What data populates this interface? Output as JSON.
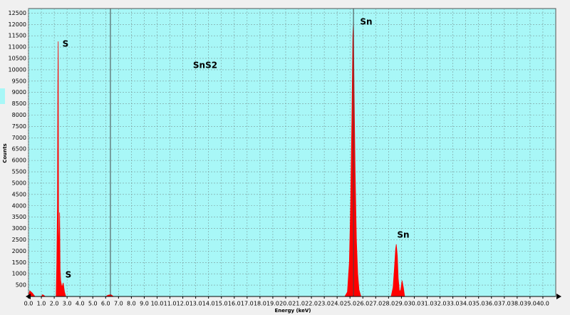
{
  "chart_data": {
    "type": "area",
    "y_label": "Counts",
    "x_label": "Energy (keV)",
    "annotations": [
      "S",
      "S",
      "SnS2",
      "Sn",
      "Sn"
    ],
    "color": "#ff0000",
    "background": "#a8f7f7",
    "grid": true,
    "cursor_lines": [
      6.37,
      25.27
    ],
    "xlim": [
      0,
      41
    ],
    "ylim": [
      0,
      12700
    ],
    "xticks": [
      {
        "value": 0,
        "label": "0.0"
      },
      {
        "value": 1,
        "label": "1.0"
      },
      {
        "value": 2,
        "label": "2.0"
      },
      {
        "value": 3,
        "label": "3.0"
      },
      {
        "value": 4,
        "label": "4.0"
      },
      {
        "value": 5,
        "label": "5.0"
      },
      {
        "value": 6,
        "label": "6.0"
      },
      {
        "value": 7,
        "label": "7.0"
      },
      {
        "value": 8,
        "label": "8.0"
      },
      {
        "value": 9,
        "label": "9.0"
      },
      {
        "value": 10,
        "label": "10.0"
      },
      {
        "value": 11,
        "label": "11.0"
      },
      {
        "value": 12,
        "label": "12.0"
      },
      {
        "value": 13,
        "label": "13.0"
      },
      {
        "value": 14,
        "label": "14.0"
      },
      {
        "value": 15,
        "label": "15.0"
      },
      {
        "value": 16,
        "label": "16.0"
      },
      {
        "value": 17,
        "label": "17.0"
      },
      {
        "value": 18,
        "label": "18.0"
      },
      {
        "value": 19,
        "label": "19.0"
      },
      {
        "value": 20,
        "label": "20.0"
      },
      {
        "value": 21,
        "label": "21.0"
      },
      {
        "value": 22,
        "label": "22.0"
      },
      {
        "value": 23,
        "label": "23.0"
      },
      {
        "value": 24,
        "label": "24.0"
      },
      {
        "value": 25,
        "label": "25.0"
      },
      {
        "value": 26,
        "label": "26.0"
      },
      {
        "value": 27,
        "label": "27.0"
      },
      {
        "value": 28,
        "label": "28.0"
      },
      {
        "value": 29,
        "label": "29.0"
      },
      {
        "value": 30,
        "label": "30.0"
      },
      {
        "value": 31,
        "label": "31.0"
      },
      {
        "value": 32,
        "label": "32.0"
      },
      {
        "value": 33,
        "label": "33.0"
      },
      {
        "value": 34,
        "label": "34.0"
      },
      {
        "value": 35,
        "label": "35.0"
      },
      {
        "value": 36,
        "label": "36.0"
      },
      {
        "value": 37,
        "label": "37.0"
      },
      {
        "value": 38,
        "label": "38.0"
      },
      {
        "value": 39,
        "label": "39.0"
      },
      {
        "value": 40,
        "label": "40.0"
      }
    ],
    "yticks": [
      500,
      1000,
      1500,
      2000,
      2500,
      3000,
      3500,
      4000,
      4500,
      5000,
      5500,
      6000,
      6500,
      7000,
      7500,
      8000,
      8500,
      9000,
      9500,
      10000,
      10500,
      11000,
      11500,
      12000,
      12500
    ],
    "x": [
      0,
      0.1,
      0.3,
      0.5,
      1.0,
      1.1,
      1.3,
      2.15,
      2.2,
      2.25,
      2.28,
      2.31,
      2.34,
      2.37,
      2.42,
      2.46,
      2.5,
      2.6,
      2.7,
      2.8,
      2.9,
      6.0,
      6.2,
      6.4,
      6.6,
      24.6,
      24.8,
      24.95,
      25.05,
      25.15,
      25.22,
      25.27,
      25.32,
      25.4,
      25.5,
      25.6,
      25.7,
      25.85,
      28.2,
      28.35,
      28.45,
      28.55,
      28.6,
      28.68,
      28.75,
      28.85,
      28.95,
      29.05,
      29.15,
      29.25,
      41
    ],
    "values": [
      0,
      250,
      150,
      0,
      0,
      80,
      0,
      0,
      1500,
      4000,
      9100,
      11250,
      3000,
      1600,
      3700,
      1200,
      700,
      400,
      600,
      200,
      0,
      0,
      60,
      80,
      0,
      0,
      200,
      1500,
      4000,
      8000,
      11500,
      12100,
      9000,
      5500,
      2500,
      1000,
      300,
      0,
      0,
      400,
      1200,
      2100,
      2300,
      1800,
      800,
      200,
      300,
      700,
      400,
      0,
      0
    ]
  }
}
